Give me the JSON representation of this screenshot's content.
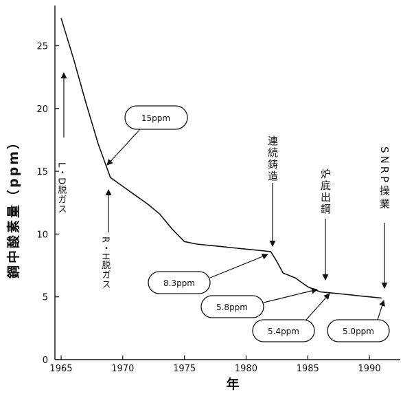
{
  "chart_data": {
    "type": "line",
    "xlabel": "年",
    "ylabel": "鋼中酸素量（ppm）",
    "xlim": [
      1964.5,
      1992.5
    ],
    "ylim": [
      0,
      28.2
    ],
    "xticks": [
      1965,
      1970,
      1975,
      1980,
      1985,
      1990
    ],
    "yticks": [
      0,
      5,
      10,
      15,
      20,
      25
    ],
    "grid": false,
    "series": [
      {
        "x": [
          1965,
          1966,
          1967,
          1968,
          1969,
          1970,
          1971,
          1972,
          1973,
          1974,
          1975,
          1976,
          1977,
          1978,
          1979,
          1980,
          1981,
          1982,
          1982.5,
          1983,
          1984,
          1985,
          1986,
          1987,
          1988,
          1989,
          1990,
          1991
        ],
        "values": [
          27.2,
          24.0,
          20.5,
          17.2,
          14.5,
          13.8,
          13.1,
          12.4,
          11.6,
          10.4,
          9.4,
          9.2,
          9.1,
          9.0,
          8.9,
          8.8,
          8.7,
          8.6,
          7.8,
          6.9,
          6.5,
          5.8,
          5.4,
          5.3,
          5.2,
          5.1,
          5.0,
          4.9
        ]
      }
    ],
    "callouts": [
      "15ppm",
      "8.3ppm",
      "5.8ppm",
      "5.4ppm",
      "5.0ppm"
    ],
    "annotations": {
      "ld": "L・D脱ガス",
      "rh": "R・H脱ガス",
      "ccast": "連続鋳造",
      "furnace": "炉底出鋼",
      "snrp": "SNRP操業"
    }
  }
}
